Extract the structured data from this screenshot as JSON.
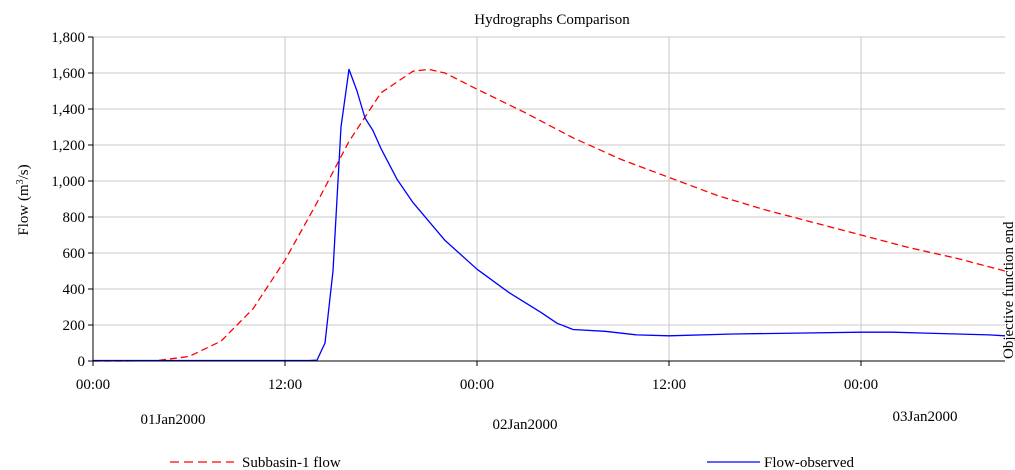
{
  "chart_data": {
    "type": "line",
    "title": "Hydrographs Comparison",
    "ylabel": "Flow (m3/s)",
    "ylabel_parts": {
      "base": "Flow (m",
      "sup": "3",
      "end": "/s)"
    },
    "xlabel": "",
    "ylim": [
      0,
      1800
    ],
    "xlim_hours": [
      0,
      57
    ],
    "y_ticks": [
      0,
      200,
      400,
      600,
      800,
      1000,
      1200,
      1400,
      1600,
      1800
    ],
    "y_tick_labels": [
      "0",
      "200",
      "400",
      "600",
      "800",
      "1,000",
      "1,200",
      "1,400",
      "1,600",
      "1,800"
    ],
    "x_ticks_hours": [
      0,
      12,
      24,
      36,
      48
    ],
    "x_tick_labels": [
      "00:00",
      "12:00",
      "00:00",
      "12:00",
      "00:00"
    ],
    "date_labels": [
      {
        "text": "01Jan2000",
        "hour": 5
      },
      {
        "text": "02Jan2000",
        "hour": 27
      },
      {
        "text": "03Jan2000",
        "hour": 52
      }
    ],
    "annotation": {
      "text": "Objective function end",
      "hour": 57
    },
    "grid": true,
    "legend_position": "bottom",
    "series": [
      {
        "name": "Subbasin-1 flow",
        "color": "#ff0000",
        "dash": "dashed",
        "x": [
          0,
          2,
          4,
          6,
          8,
          10,
          12,
          14,
          16,
          18,
          20,
          21,
          22,
          24,
          27,
          30,
          33,
          36,
          39,
          42,
          45,
          48,
          51,
          54,
          57
        ],
        "y": [
          0,
          0,
          2,
          25,
          110,
          290,
          560,
          880,
          1220,
          1490,
          1610,
          1620,
          1600,
          1510,
          1380,
          1240,
          1120,
          1020,
          920,
          840,
          770,
          700,
          630,
          570,
          500
        ]
      },
      {
        "name": "Flow-observed",
        "color": "#0000ff",
        "dash": "solid",
        "x": [
          0,
          13.5,
          14,
          14.5,
          15,
          15.5,
          16,
          16.5,
          17,
          17.5,
          18,
          19,
          20,
          22,
          24,
          26,
          28,
          29,
          30,
          32,
          34,
          36,
          40,
          44,
          48,
          50,
          52,
          54,
          56,
          57
        ],
        "y": [
          3,
          3,
          5,
          100,
          500,
          1300,
          1620,
          1500,
          1350,
          1280,
          1180,
          1010,
          880,
          670,
          510,
          380,
          270,
          210,
          175,
          165,
          145,
          140,
          150,
          155,
          160,
          160,
          155,
          150,
          145,
          140
        ]
      }
    ]
  }
}
